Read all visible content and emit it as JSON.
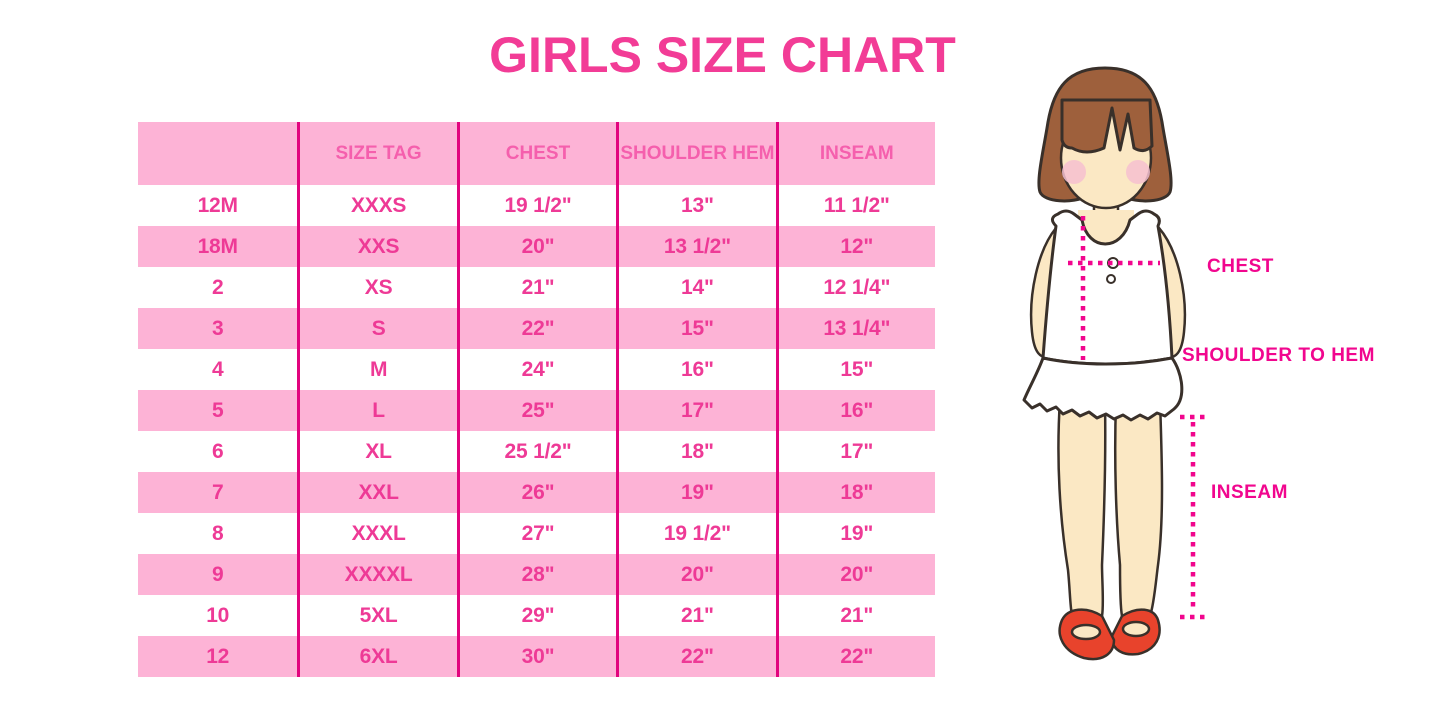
{
  "title": "GIRLS SIZE CHART",
  "colors": {
    "title_text": "#F23C96",
    "header_text": "#F55FAD",
    "cell_text": "#EE3A96",
    "row_pink": "#FDB3D6",
    "row_white": "#FFFFFF",
    "divider": "#E2047E",
    "measure": "#F1068E",
    "hair": "#9E603C",
    "outline": "#39302A",
    "skin": "#FBE8C4",
    "blush": "#F6BFD0",
    "shoe": "#E8432C",
    "garment": "#FFFFFF"
  },
  "table": {
    "columns": [
      "",
      "SIZE TAG",
      "CHEST",
      "SHOULDER HEM",
      "INSEAM"
    ],
    "rows": [
      [
        "12M",
        "XXXS",
        "19 1/2\"",
        "13\"",
        "11 1/2\""
      ],
      [
        "18M",
        "XXS",
        "20\"",
        "13 1/2\"",
        "12\""
      ],
      [
        "2",
        "XS",
        "21\"",
        "14\"",
        "12 1/4\""
      ],
      [
        "3",
        "S",
        "22\"",
        "15\"",
        "13 1/4\""
      ],
      [
        "4",
        "M",
        "24\"",
        "16\"",
        "15\""
      ],
      [
        "5",
        "L",
        "25\"",
        "17\"",
        "16\""
      ],
      [
        "6",
        "XL",
        "25 1/2\"",
        "18\"",
        "17\""
      ],
      [
        "7",
        "XXL",
        "26\"",
        "19\"",
        "18\""
      ],
      [
        "8",
        "XXXL",
        "27\"",
        "19 1/2\"",
        "19\""
      ],
      [
        "9",
        "XXXXL",
        "28\"",
        "20\"",
        "20\""
      ],
      [
        "10",
        "5XL",
        "29\"",
        "21\"",
        "21\""
      ],
      [
        "12",
        "6XL",
        "30\"",
        "22\"",
        "22\""
      ]
    ]
  },
  "diagram": {
    "labels": {
      "chest": "CHEST",
      "shoulder_to_hem": "SHOULDER TO HEM",
      "inseam": "INSEAM"
    }
  }
}
